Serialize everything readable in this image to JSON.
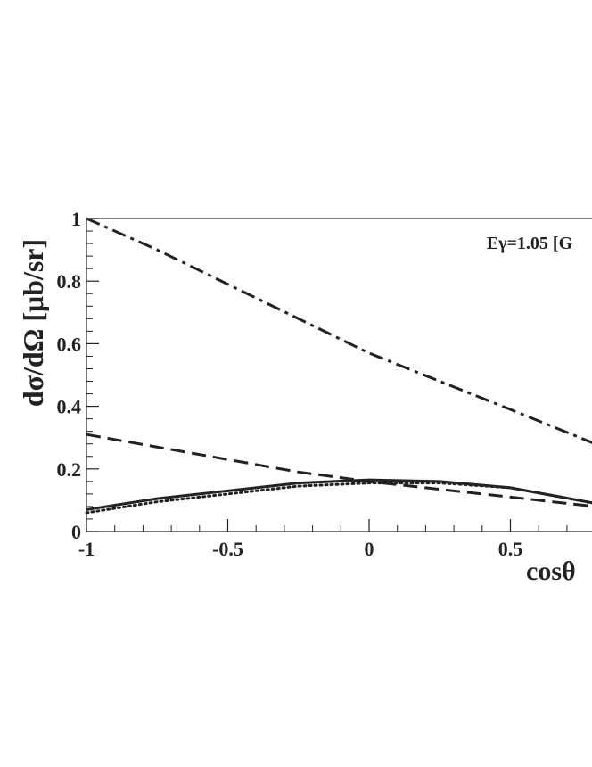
{
  "chart_data": {
    "type": "line",
    "ylabel": "dσ/dΩ [μb/sr]",
    "xlabel": "cosθ",
    "annotation": "Eγ=1.05 [G",
    "xlim": [
      -1,
      1
    ],
    "ylim": [
      0,
      1
    ],
    "xticks": [
      -1,
      -0.5,
      0,
      0.5
    ],
    "yticks": [
      0,
      0.2,
      0.4,
      0.6,
      0.8,
      1
    ],
    "x": [
      -1,
      -0.75,
      -0.5,
      -0.25,
      0,
      0.25,
      0.5,
      0.8
    ],
    "series": [
      {
        "color": "#222222",
        "style": "dashdot",
        "values": [
          1.0,
          0.9,
          0.79,
          0.68,
          0.57,
          0.48,
          0.39,
          0.28
        ]
      },
      {
        "color": "#222222",
        "style": "dashed",
        "values": [
          0.31,
          0.27,
          0.23,
          0.19,
          0.16,
          0.135,
          0.11,
          0.08
        ]
      },
      {
        "color": "#222222",
        "style": "solid",
        "values": [
          0.07,
          0.105,
          0.13,
          0.155,
          0.165,
          0.16,
          0.14,
          0.09
        ]
      },
      {
        "color": "#222222",
        "style": "dotted",
        "values": [
          0.06,
          0.095,
          0.12,
          0.145,
          0.155,
          0.155,
          0.14,
          0.09
        ]
      }
    ]
  }
}
